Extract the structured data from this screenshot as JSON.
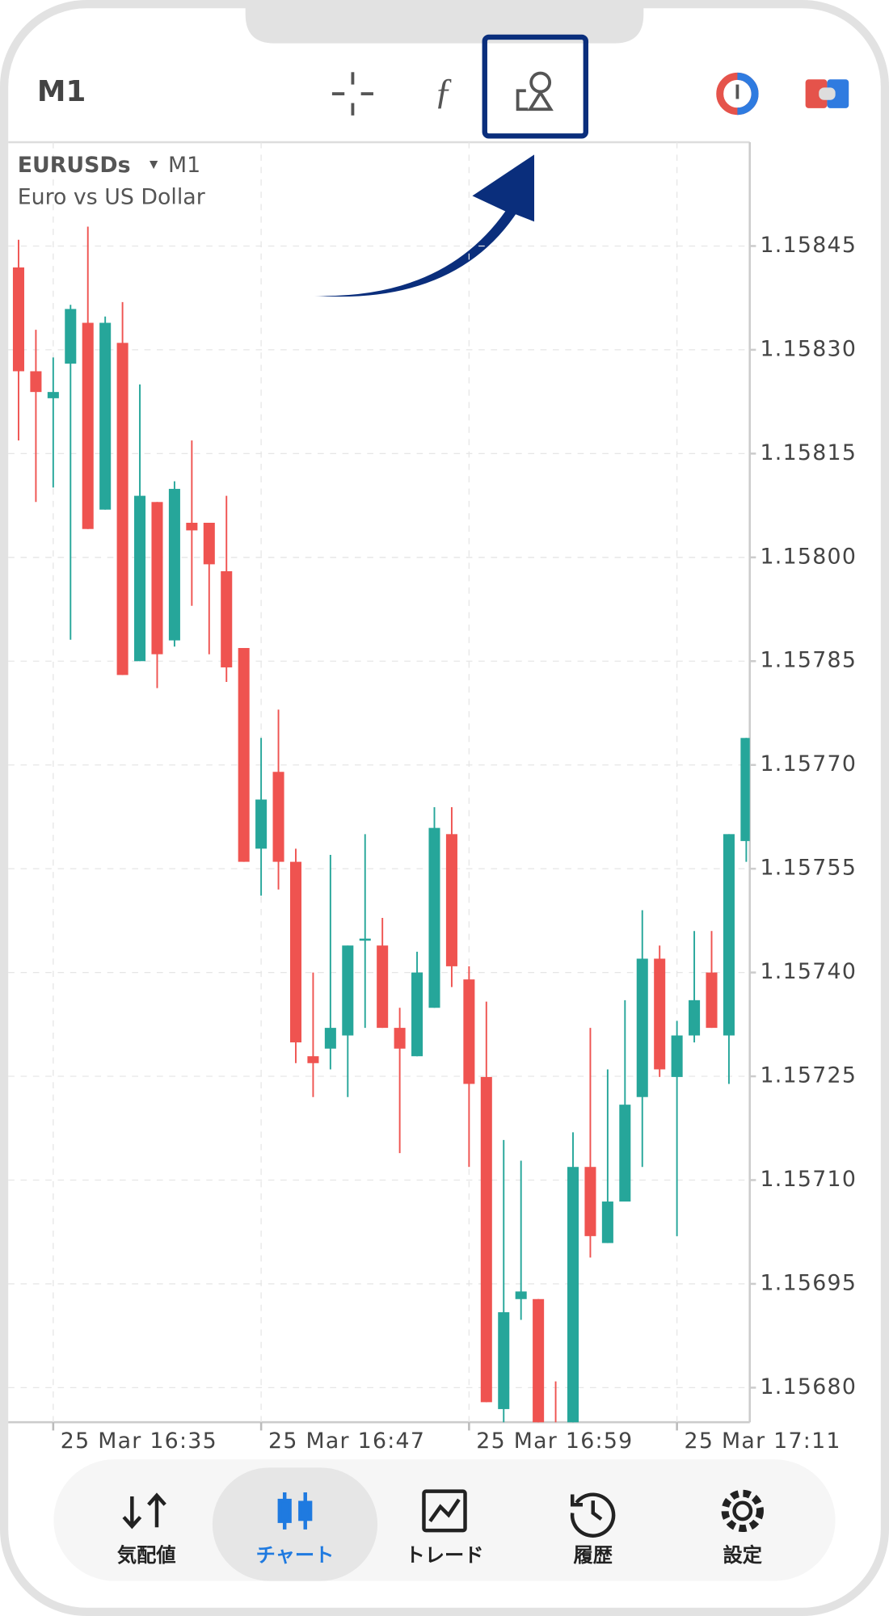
{
  "toolbar": {
    "timeframe": "M1"
  },
  "chart_data": {
    "type": "candlestick",
    "title": "EURUSDs",
    "timeframe_label": "M1",
    "subtitle": "Euro vs US Dollar",
    "categories": [
      null,
      null,
      "25 Mar 16:35",
      null,
      null,
      null,
      null,
      null,
      null,
      null,
      null,
      null,
      null,
      null,
      "25 Mar 16:47",
      null,
      null,
      null,
      null,
      null,
      null,
      null,
      null,
      null,
      null,
      null,
      "25 Mar 16:59",
      null,
      null,
      null,
      null,
      null,
      null,
      null,
      null,
      null,
      null,
      null,
      "25 Mar 17:11",
      null,
      null,
      null,
      null
    ],
    "open": [
      1.158419,
      1.158269,
      1.15823,
      1.15828,
      1.158339,
      1.158069,
      1.15831,
      1.15785,
      1.15808,
      1.15788,
      1.15805,
      1.15805,
      1.15798,
      1.157869,
      1.157579,
      1.15769,
      1.15756,
      1.157279,
      1.15729,
      1.157309,
      1.157446,
      1.157439,
      1.15732,
      1.157279,
      1.157349,
      1.1576,
      1.15739,
      1.157249,
      1.156769,
      1.156928,
      1.156928,
      1.156739,
      1.156716,
      1.157119,
      1.157009,
      1.157069,
      1.15722,
      1.15742,
      1.157249,
      1.157309,
      1.1574,
      1.157309,
      1.15759
    ],
    "high": [
      1.158459,
      1.158329,
      1.158289,
      1.158365,
      1.158478,
      1.158348,
      1.158369,
      1.15825,
      1.15808,
      1.15811,
      1.158169,
      1.15805,
      1.158089,
      1.157869,
      1.157739,
      1.15778,
      1.157579,
      1.1574,
      1.15757,
      1.157439,
      1.1576,
      1.157479,
      1.157349,
      1.15743,
      1.157639,
      1.157639,
      1.157409,
      1.157358,
      1.157158,
      1.157128,
      1.156928,
      1.156809,
      1.157169,
      1.15732,
      1.15726,
      1.15736,
      1.15749,
      1.157439,
      1.15733,
      1.15746,
      1.15746,
      1.1576,
      1.157739
    ],
    "low": [
      1.158169,
      1.15808,
      1.158101,
      1.157881,
      1.158041,
      1.158069,
      1.15783,
      1.15785,
      1.157811,
      1.157871,
      1.15793,
      1.15786,
      1.15782,
      1.15756,
      1.157511,
      1.15752,
      1.157269,
      1.15722,
      1.15726,
      1.15722,
      1.15732,
      1.15732,
      1.157139,
      1.157279,
      1.157349,
      1.157379,
      1.157119,
      1.156779,
      1.156746,
      1.156898,
      1.156716,
      1.156686,
      1.156716,
      1.156988,
      1.157009,
      1.157069,
      1.157119,
      1.157249,
      1.157019,
      1.157299,
      1.15732,
      1.157239,
      1.15756
    ],
    "close": [
      1.158269,
      1.158239,
      1.158239,
      1.158359,
      1.158041,
      1.158339,
      1.15783,
      1.158089,
      1.15786,
      1.158099,
      1.158039,
      1.15799,
      1.157841,
      1.15756,
      1.15765,
      1.15756,
      1.157299,
      1.157269,
      1.15732,
      1.157439,
      1.157449,
      1.15732,
      1.15729,
      1.1574,
      1.157609,
      1.157409,
      1.157239,
      1.156779,
      1.156909,
      1.156939,
      1.156716,
      1.156686,
      1.157119,
      1.157019,
      1.157069,
      1.157209,
      1.15742,
      1.15726,
      1.157309,
      1.15736,
      1.15732,
      1.1576,
      1.157739
    ],
    "up_color": "#26a69a",
    "down_color": "#ef5350",
    "ylim": [
      1.15675,
      1.1586
    ],
    "yticks": [
      1.15845,
      {
        "value": 1.1583,
        "label": "1.15830"
      },
      1.15815,
      {
        "value": 1.158,
        "label": "1.15800"
      },
      1.15785,
      {
        "value": 1.1577,
        "label": "1.15770"
      },
      1.15755,
      {
        "value": 1.1574,
        "label": "1.15740"
      },
      1.15725,
      {
        "value": 1.1571,
        "label": "1.15710"
      },
      1.15695,
      {
        "value": 1.1568,
        "label": "1.15680"
      }
    ],
    "grid": true
  },
  "nav": {
    "items": [
      "気配値",
      "チャート",
      "トレード",
      "履歴",
      "設定"
    ],
    "active": 1
  }
}
